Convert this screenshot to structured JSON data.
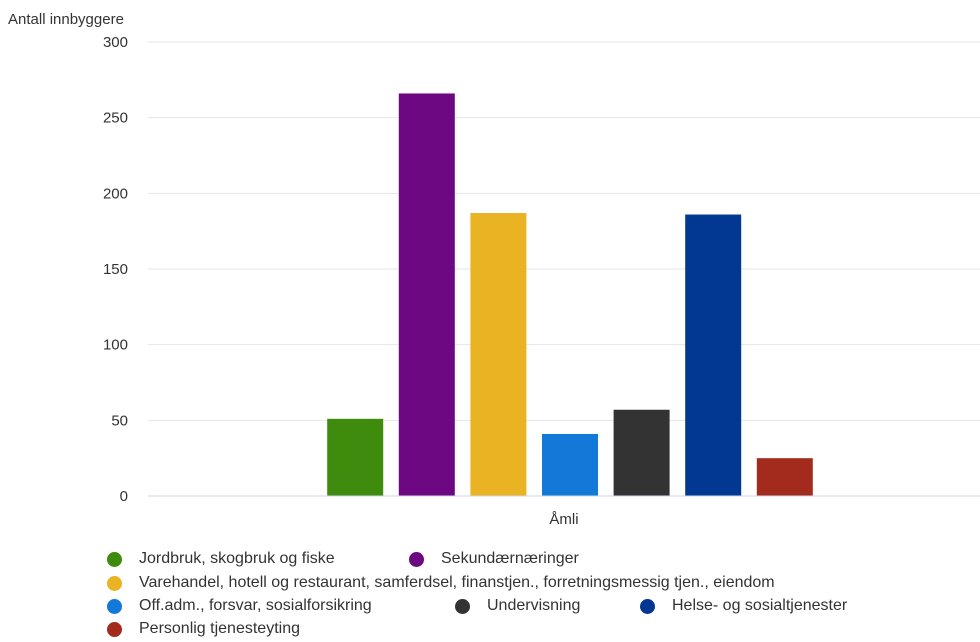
{
  "chart_data": {
    "type": "bar",
    "title": "",
    "ylabel": "Antall innbyggere",
    "xlabel": "",
    "categories": [
      "Åmli"
    ],
    "ylim": [
      0,
      300
    ],
    "yticks": [
      0,
      50,
      100,
      150,
      200,
      250,
      300
    ],
    "grid": true,
    "legend_position": "bottom",
    "series": [
      {
        "name": "Jordbruk, skogbruk og fiske",
        "color": "#3f8b0e",
        "values": [
          51
        ]
      },
      {
        "name": "Sekundærnæringer",
        "color": "#6e0882",
        "values": [
          266
        ]
      },
      {
        "name": "Varehandel, hotell og restaurant, samferdsel, finanstjen., forretningsmessig tjen., eiendom",
        "color": "#e9b324",
        "values": [
          187
        ]
      },
      {
        "name": "Off.adm., forsvar, sosialforsikring",
        "color": "#1379d8",
        "values": [
          41
        ]
      },
      {
        "name": "Undervisning",
        "color": "#333333",
        "values": [
          57
        ]
      },
      {
        "name": "Helse- og sosialtjenester",
        "color": "#023891",
        "values": [
          186
        ]
      },
      {
        "name": "Personlig tjenesteyting",
        "color": "#a32b1e",
        "values": [
          25
        ]
      }
    ]
  }
}
